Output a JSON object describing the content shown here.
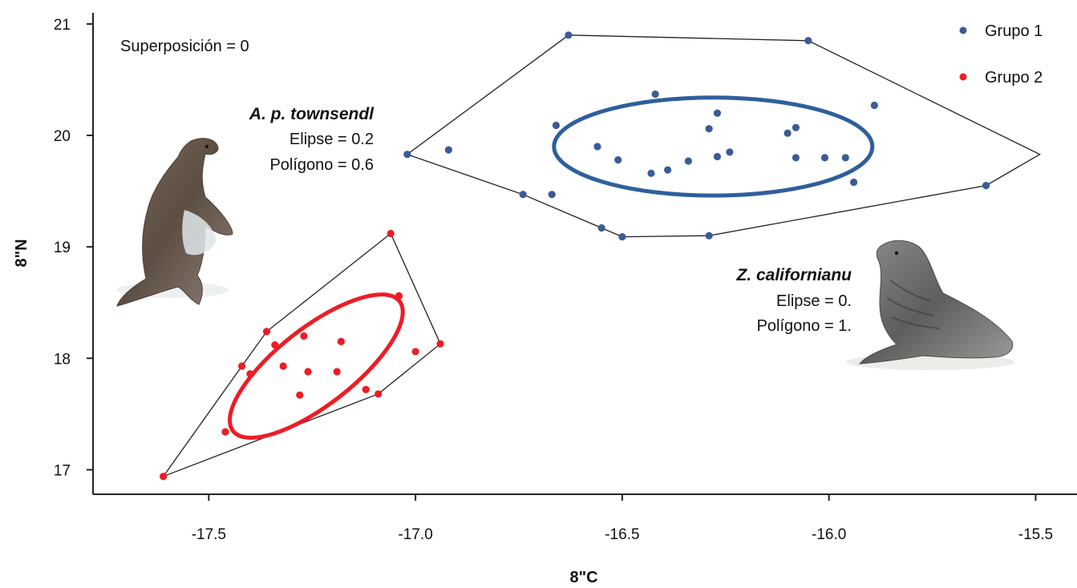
{
  "chart_data": {
    "type": "scatter",
    "xlabel": "8\"C",
    "ylabel": "8\"N",
    "xlim": [
      -17.78,
      -15.4
    ],
    "ylim": [
      16.78,
      21.1
    ],
    "x_ticks": [
      -17.5,
      -17.0,
      -16.5,
      -16.0,
      -15.5
    ],
    "x_tick_labels": [
      "-17.5",
      "-17.0",
      "-16.5",
      "-16.0",
      "-15.5"
    ],
    "y_ticks": [
      17,
      18,
      19,
      20,
      21
    ],
    "y_tick_labels": [
      "17",
      "18",
      "19",
      "20",
      "21"
    ],
    "grid": false,
    "legend": {
      "position": "top-right",
      "entries": [
        {
          "label": "Grupo 1",
          "color": "#3a5c96"
        },
        {
          "label": "Grupo 2",
          "color": "#ee1c24"
        }
      ]
    },
    "annotations": {
      "overlap": "Superposición = 0",
      "group2": {
        "species": "A. p. townsendl",
        "ellipse": "Elipse = 0.2",
        "polygon": "Polígono = 0.6"
      },
      "group1": {
        "species": "Z. californianu",
        "ellipse": "Elipse = 0.",
        "polygon": "Polígono = 1."
      }
    },
    "series": [
      {
        "name": "Grupo 1",
        "color": "#3a5c96",
        "ellipse_color": "#2e5f9c",
        "points": [
          [
            -17.02,
            19.83
          ],
          [
            -16.92,
            19.87
          ],
          [
            -16.74,
            19.47
          ],
          [
            -16.67,
            19.47
          ],
          [
            -16.66,
            20.09
          ],
          [
            -16.63,
            20.9
          ],
          [
            -16.56,
            19.9
          ],
          [
            -16.55,
            19.17
          ],
          [
            -16.51,
            19.78
          ],
          [
            -16.5,
            19.09
          ],
          [
            -16.43,
            19.66
          ],
          [
            -16.42,
            20.37
          ],
          [
            -16.39,
            19.69
          ],
          [
            -16.34,
            19.77
          ],
          [
            -16.29,
            20.06
          ],
          [
            -16.29,
            19.1
          ],
          [
            -16.27,
            20.2
          ],
          [
            -16.27,
            19.81
          ],
          [
            -16.24,
            19.85
          ],
          [
            -16.1,
            20.02
          ],
          [
            -16.08,
            19.8
          ],
          [
            -16.08,
            20.07
          ],
          [
            -16.05,
            20.85
          ],
          [
            -16.01,
            19.8
          ],
          [
            -15.96,
            19.8
          ],
          [
            -15.94,
            19.58
          ],
          [
            -15.89,
            20.27
          ],
          [
            -15.62,
            19.55
          ]
        ],
        "hull": [
          [
            -16.63,
            20.9
          ],
          [
            -16.05,
            20.85
          ],
          [
            -15.49,
            19.83
          ],
          [
            -15.62,
            19.55
          ],
          [
            -16.29,
            19.1
          ],
          [
            -16.5,
            19.09
          ],
          [
            -16.55,
            19.17
          ],
          [
            -16.74,
            19.47
          ],
          [
            -17.02,
            19.83
          ]
        ],
        "ellipse": {
          "center": [
            -16.28,
            19.9
          ],
          "rx": 0.385,
          "ry": 0.44,
          "angle": 0
        }
      },
      {
        "name": "Grupo 2",
        "color": "#ee1c24",
        "ellipse_color": "#ee1c24",
        "points": [
          [
            -17.61,
            16.94
          ],
          [
            -17.46,
            17.34
          ],
          [
            -17.42,
            17.93
          ],
          [
            -17.4,
            17.86
          ],
          [
            -17.36,
            18.24
          ],
          [
            -17.34,
            18.12
          ],
          [
            -17.32,
            17.93
          ],
          [
            -17.28,
            17.67
          ],
          [
            -17.27,
            18.2
          ],
          [
            -17.26,
            17.88
          ],
          [
            -17.19,
            17.88
          ],
          [
            -17.18,
            18.15
          ],
          [
            -17.12,
            17.72
          ],
          [
            -17.09,
            17.68
          ],
          [
            -17.06,
            19.12
          ],
          [
            -17.04,
            18.56
          ],
          [
            -17.0,
            18.06
          ],
          [
            -16.94,
            18.13
          ]
        ],
        "hull": [
          [
            -17.61,
            16.94
          ],
          [
            -17.09,
            17.68
          ],
          [
            -16.94,
            18.13
          ],
          [
            -17.06,
            19.12
          ],
          [
            -17.36,
            18.24
          ],
          [
            -17.42,
            17.93
          ]
        ],
        "ellipse": {
          "center": [
            -17.24,
            17.93
          ],
          "rx": 0.22,
          "ry": 0.38,
          "angle": -38
        }
      }
    ]
  }
}
